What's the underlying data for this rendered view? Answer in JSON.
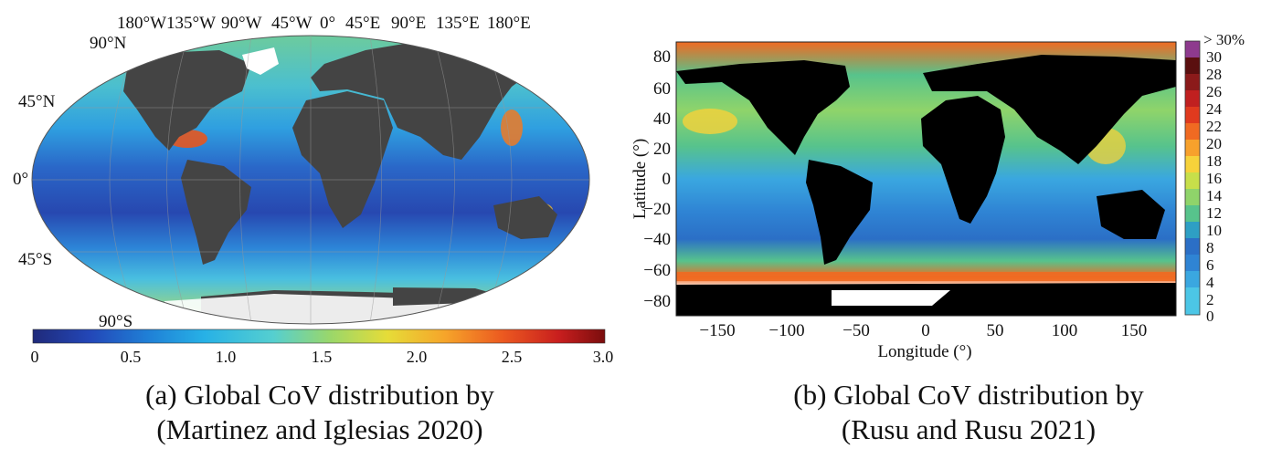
{
  "panel_a": {
    "lon_labels": [
      "180°W",
      "135°W",
      "90°W",
      "45°W",
      "0°",
      "45°E",
      "90°E",
      "135°E",
      "180°E"
    ],
    "lat_labels": [
      "90°N",
      "45°N",
      "0°",
      "45°S",
      "90°S"
    ],
    "colorbar_ticks": [
      "0",
      "0.5",
      "1.0",
      "1.5",
      "2.0",
      "2.5",
      "3.0"
    ],
    "colormap": [
      "#1f2a7a",
      "#2347b8",
      "#1f7fd6",
      "#27b1e6",
      "#55cfd0",
      "#9ad76a",
      "#e6dc38",
      "#f6a52a",
      "#ec5a20",
      "#c81e1e",
      "#7a0d0d"
    ],
    "land_color": "#444444",
    "ice_color": "#ffffff",
    "caption_line1": "(a) Global CoV distribution by",
    "caption_line2": "(Martinez and Iglesias 2020)"
  },
  "panel_b": {
    "xlabel": "Longitude (°)",
    "ylabel": "Latitude (°)",
    "x_ticks": [
      "−150",
      "−100",
      "−50",
      "0",
      "50",
      "100",
      "150"
    ],
    "y_ticks": [
      "80",
      "60",
      "40",
      "20",
      "0",
      "−20",
      "−40",
      "−60",
      "−80"
    ],
    "colorbar_ticks": [
      "> 30%",
      "30",
      "28",
      "26",
      "24",
      "22",
      "20",
      "18",
      "16",
      "14",
      "12",
      "10",
      "8",
      "6",
      "4",
      "2",
      "0"
    ],
    "colorbar_colors": [
      "#8e3a8e",
      "#5a0f0f",
      "#8b1a1a",
      "#c02020",
      "#e03a1e",
      "#f06a22",
      "#f7a12c",
      "#f6d23a",
      "#c7df4a",
      "#8fd46a",
      "#57c38c",
      "#2e9fc4",
      "#2b6fc6",
      "#2f84d4",
      "#3aa7e0",
      "#4cc6e6"
    ],
    "land_color": "#000000",
    "caption_line1": "(b) Global CoV distribution by",
    "caption_line2": "(Rusu and Rusu 2021)"
  }
}
